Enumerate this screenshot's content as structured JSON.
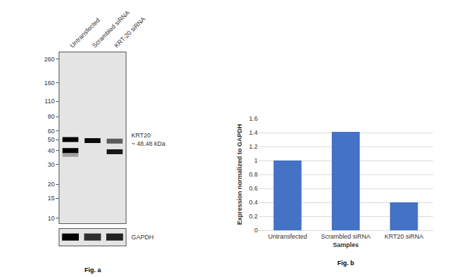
{
  "chart_data": [
    {
      "type": "blot",
      "caption": "Fig. a",
      "categories": [
        "Untransfected",
        "Scrambled siRNA",
        "KRT-20 siRNA"
      ],
      "log": "y",
      "ylim": [
        9,
        300
      ],
      "yticks": [
        10,
        15,
        20,
        30,
        40,
        50,
        60,
        80,
        110,
        160,
        260
      ],
      "bands": [
        {
          "lane": "Untransfected",
          "kda": 50,
          "intensity": 1
        },
        {
          "lane": "Untransfected",
          "kda": 40,
          "intensity": 1
        },
        {
          "lane": "Untransfected",
          "kda": 37,
          "intensity": 0.3
        },
        {
          "lane": "Scrambled siRNA",
          "kda": 49,
          "intensity": 0.95
        },
        {
          "lane": "KRT-20 siRNA",
          "kda": 48.5,
          "intensity": 0.6
        },
        {
          "lane": "KRT-20 siRNA",
          "kda": 39,
          "intensity": 0.9
        }
      ],
      "band_label": "KRT20",
      "band_size": "~ 48.48 kDa",
      "loading_control": {
        "label": "GAPDH",
        "intensity": [
          1,
          0.8,
          0.85
        ]
      }
    },
    {
      "type": "bar",
      "caption": "Fig. b",
      "x_label": "Samples",
      "y_label": "Expression normalized to GAPDH",
      "categories": [
        "Untransfected",
        "Scrambled siRNA",
        "KRT20 siRNA"
      ],
      "values": [
        1,
        1.41,
        0.4
      ],
      "color": "#4472c4",
      "ylim": [
        0,
        1.6
      ],
      "yticks": [
        0,
        0.2,
        0.4,
        0.6,
        0.8,
        1,
        1.2,
        1.4,
        1.6
      ],
      "grid": true
    }
  ]
}
